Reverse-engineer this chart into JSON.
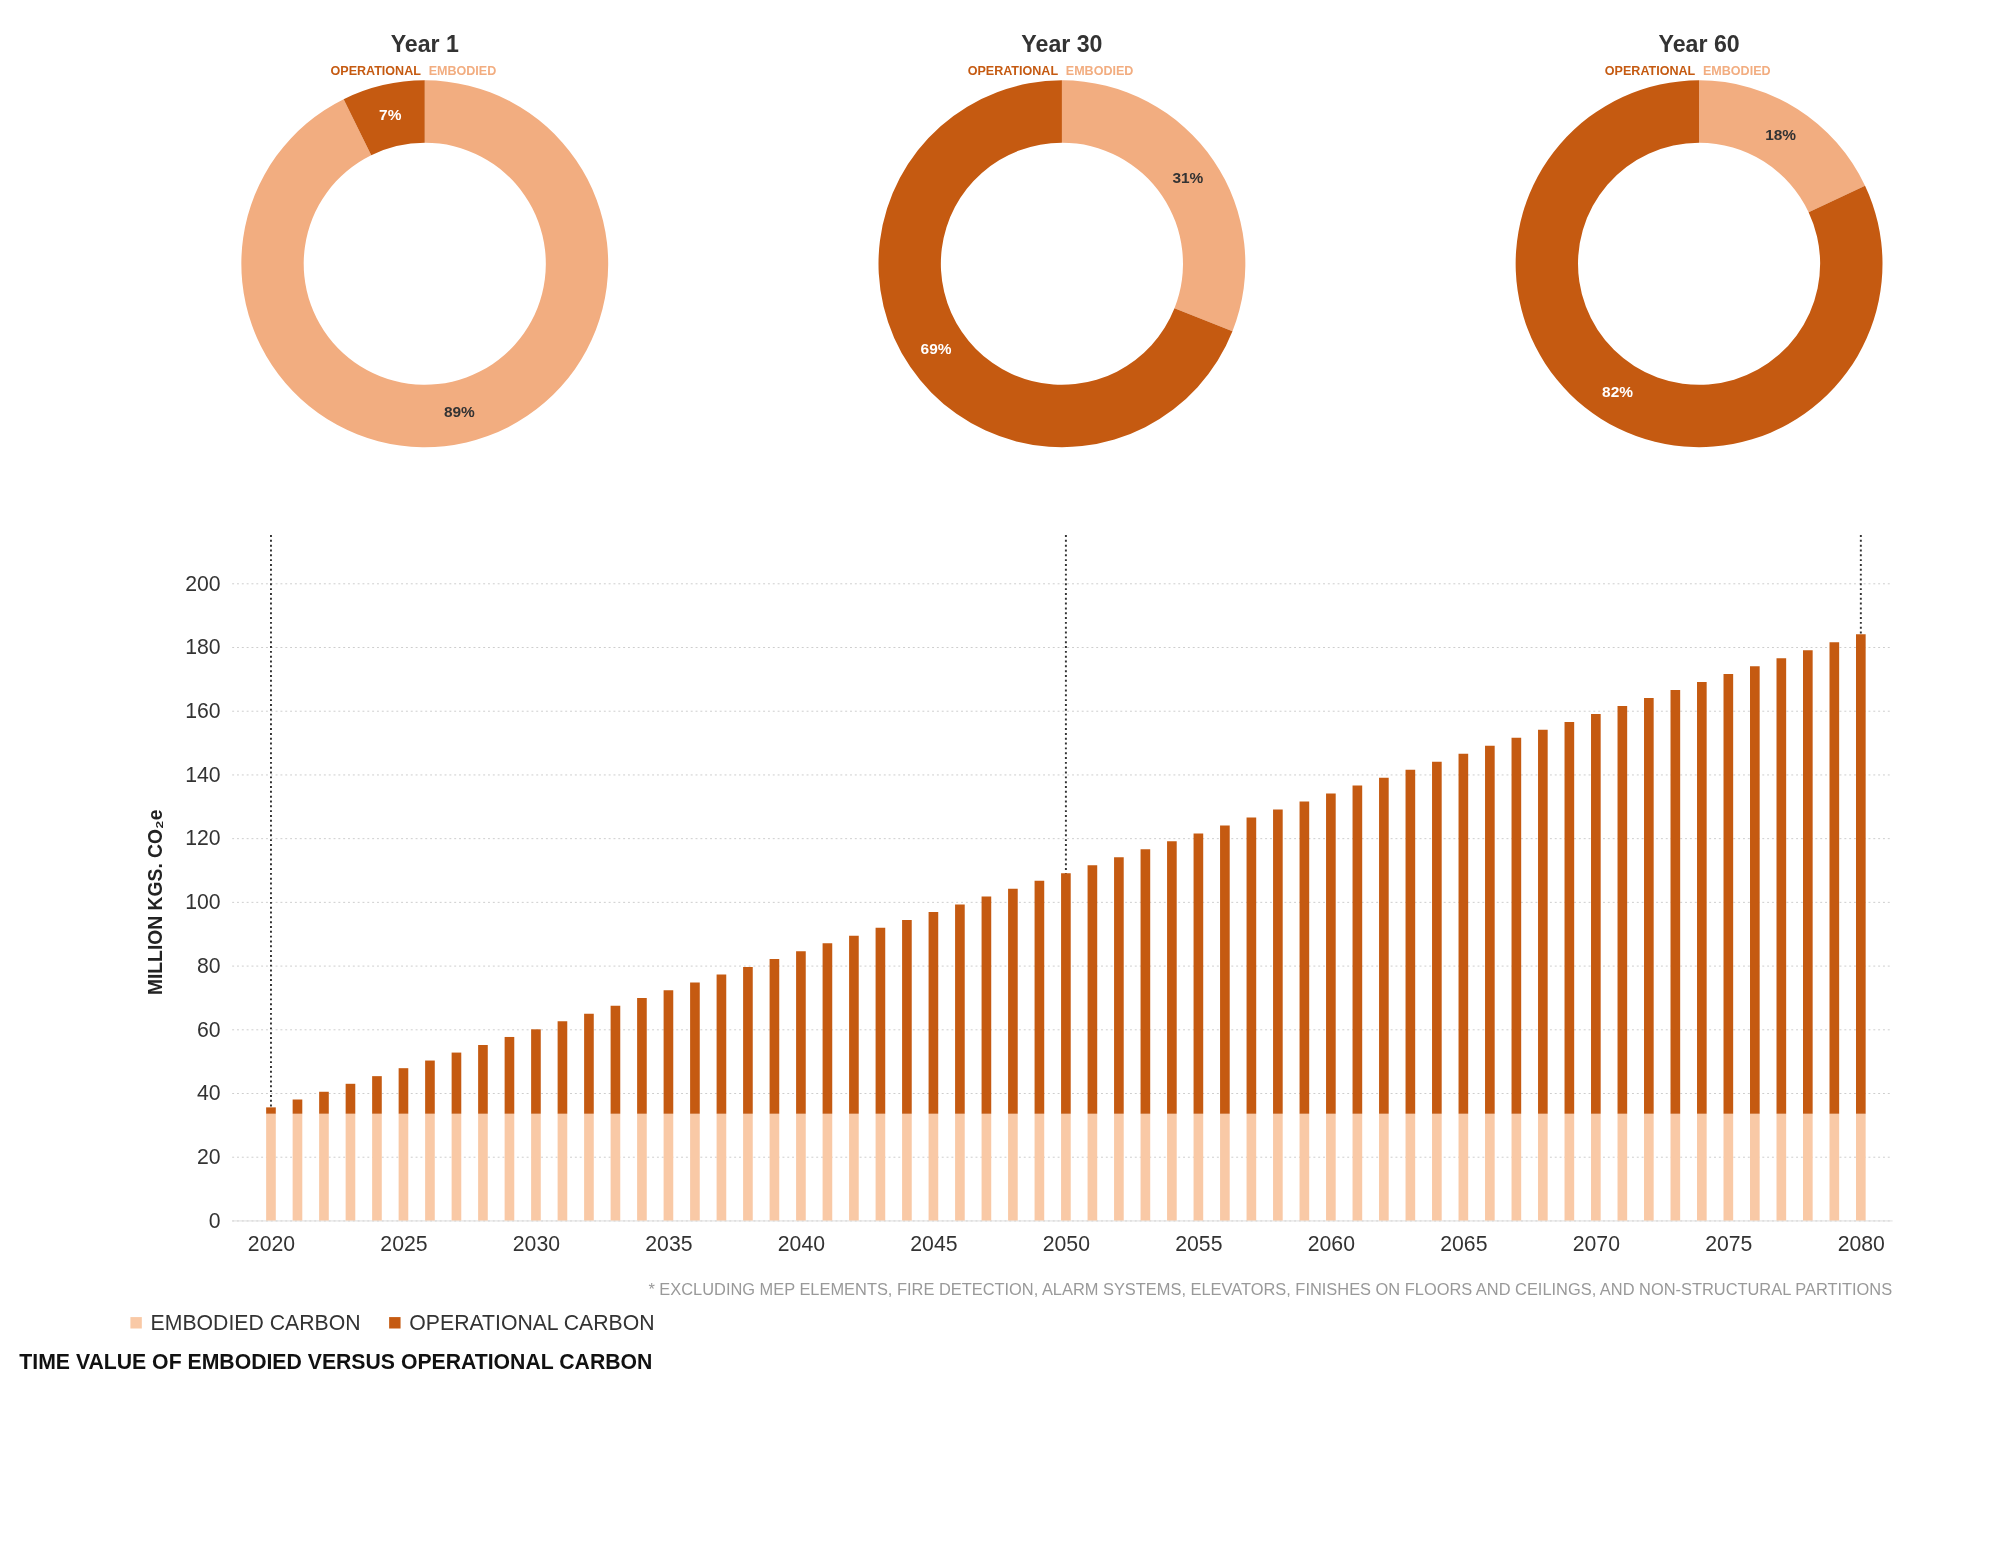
{
  "chart_data": [
    {
      "type": "donut",
      "title": "Year 1",
      "categories": [
        "EMBODIED",
        "OPERATIONAL"
      ],
      "values": [
        89,
        7
      ],
      "colors": [
        "#f2ad80",
        "#c55a11"
      ],
      "value_labels": [
        "89%",
        "7%"
      ]
    },
    {
      "type": "donut",
      "title": "Year 30",
      "categories": [
        "EMBODIED",
        "OPERATIONAL"
      ],
      "values": [
        31,
        69
      ],
      "colors": [
        "#f2ad80",
        "#c55a11"
      ],
      "value_labels": [
        "31%",
        "69%"
      ]
    },
    {
      "type": "donut",
      "title": "Year 60",
      "categories": [
        "EMBODIED",
        "OPERATIONAL"
      ],
      "values": [
        18,
        82
      ],
      "colors": [
        "#f2ad80",
        "#c55a11"
      ],
      "value_labels": [
        "18%",
        "82%"
      ]
    },
    {
      "type": "bar",
      "stacked": true,
      "title": "TIME VALUE OF EMBODIED VERSUS OPERATIONAL CARBON",
      "ylabel": "MILLION KGS. CO₂e",
      "x": [
        2020,
        2021,
        2022,
        2023,
        2024,
        2025,
        2026,
        2027,
        2028,
        2029,
        2030,
        2031,
        2032,
        2033,
        2034,
        2035,
        2036,
        2037,
        2038,
        2039,
        2040,
        2041,
        2042,
        2043,
        2044,
        2045,
        2046,
        2047,
        2048,
        2049,
        2050,
        2051,
        2052,
        2053,
        2054,
        2055,
        2056,
        2057,
        2058,
        2059,
        2060,
        2061,
        2062,
        2063,
        2064,
        2065,
        2066,
        2067,
        2068,
        2069,
        2070,
        2071,
        2072,
        2073,
        2074,
        2075,
        2076,
        2077,
        2078,
        2079,
        2080
      ],
      "series": [
        {
          "name": "EMBODIED CARBON",
          "color": "#f9c9a6",
          "values": [
            33.5,
            33.5,
            33.5,
            33.5,
            33.5,
            33.5,
            33.5,
            33.5,
            33.5,
            33.5,
            33.5,
            33.5,
            33.5,
            33.5,
            33.5,
            33.5,
            33.5,
            33.5,
            33.5,
            33.5,
            33.5,
            33.5,
            33.5,
            33.5,
            33.5,
            33.5,
            33.5,
            33.5,
            33.5,
            33.5,
            33.5,
            33.5,
            33.5,
            33.5,
            33.5,
            33.5,
            33.5,
            33.5,
            33.5,
            33.5,
            33.5,
            33.5,
            33.5,
            33.5,
            33.5,
            33.5,
            33.5,
            33.5,
            33.5,
            33.5,
            33.5,
            33.5,
            33.5,
            33.5,
            33.5,
            33.5,
            33.5,
            33.5,
            33.5,
            33.5,
            33.5
          ]
        },
        {
          "name": "OPERATIONAL CARBON",
          "color": "#c55a11",
          "values": [
            2,
            4.5,
            6.9,
            9.4,
            11.8,
            14.3,
            16.7,
            19.2,
            21.6,
            24.1,
            26.5,
            29,
            31.4,
            33.9,
            36.3,
            38.8,
            41.2,
            43.7,
            46.1,
            48.6,
            51,
            53.5,
            55.9,
            58.4,
            60.8,
            63.3,
            65.7,
            68.2,
            70.6,
            73.1,
            75.5,
            78,
            80.5,
            83,
            85.5,
            88,
            90.5,
            93,
            95.5,
            98,
            100.5,
            103,
            105.5,
            108,
            110.5,
            113,
            115.5,
            118,
            120.5,
            123,
            125.5,
            128,
            130.5,
            133,
            135.5,
            138,
            140.5,
            143,
            145.5,
            148,
            150.5
          ]
        }
      ],
      "xlim": [
        2018.7,
        2081
      ],
      "xticks": [
        2020,
        2025,
        2030,
        2035,
        2040,
        2045,
        2050,
        2055,
        2060,
        2065,
        2070,
        2075,
        2080
      ],
      "ylim": [
        0,
        200
      ],
      "yticks": [
        0,
        20,
        40,
        60,
        80,
        100,
        120,
        140,
        160,
        180,
        200
      ],
      "grid": "y",
      "legend": "bottom left",
      "ref_lines": [
        {
          "axis": "x",
          "value": 2020,
          "color": "#333333",
          "line_style": "dotted"
        },
        {
          "axis": "x",
          "value": 2050,
          "color": "#333333",
          "line_style": "dotted"
        },
        {
          "axis": "x",
          "value": 2080,
          "color": "#333333",
          "line_style": "dotted"
        }
      ],
      "annotations": [
        "* EXCLUDING MEP ELEMENTS, FIRE DETECTION, ALARM SYSTEMS, ELEVATORS, FINISHES ON FLOORS AND CEILINGS, AND NON-STRUCTURAL PARTITIONS"
      ]
    }
  ]
}
